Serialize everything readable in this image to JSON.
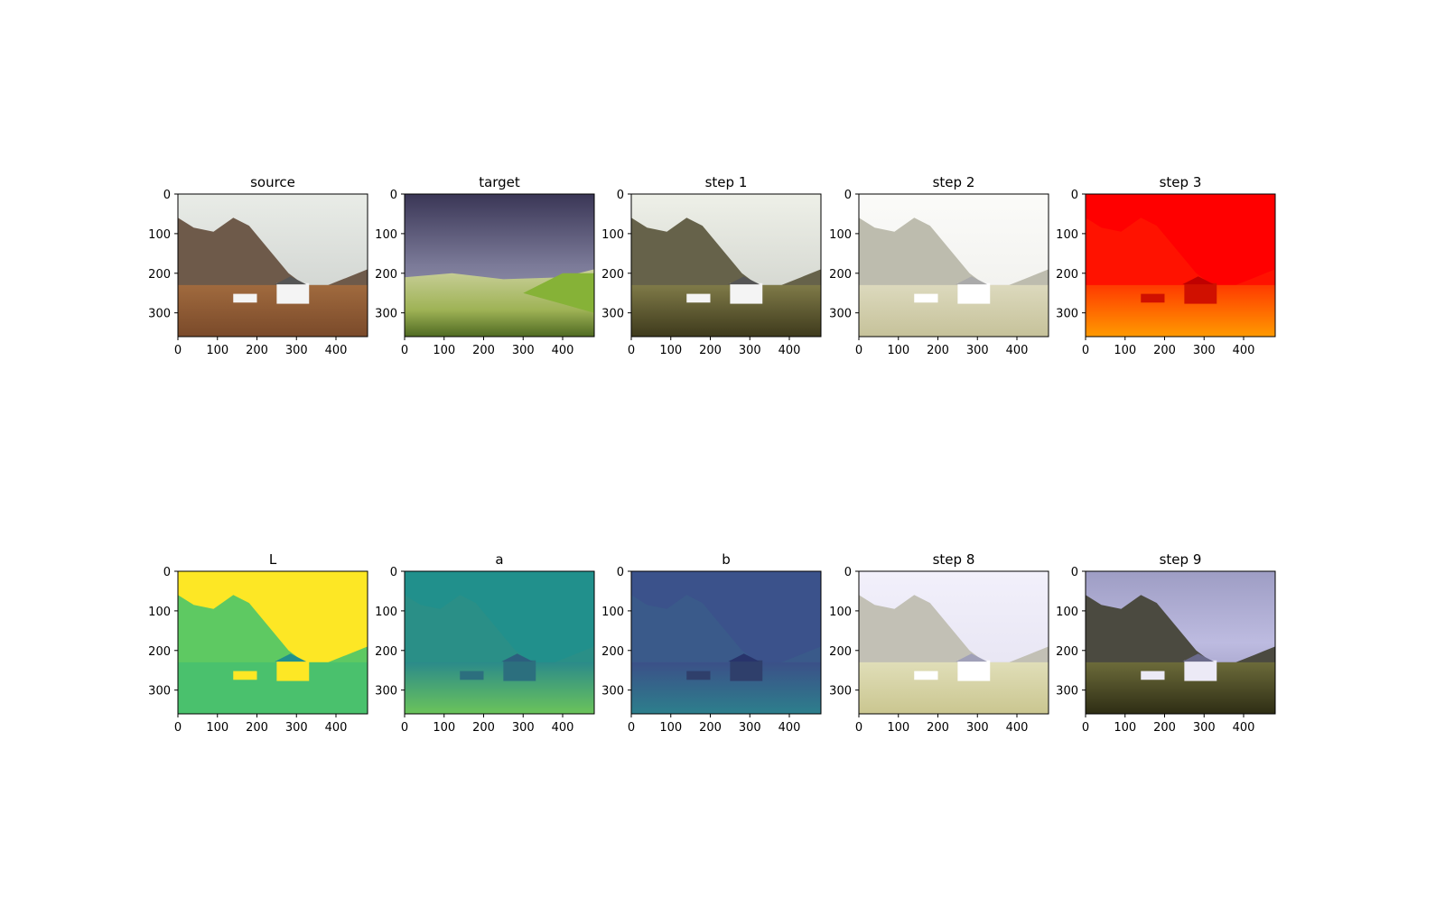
{
  "figure": {
    "panels": [
      {
        "title": "source",
        "theme": "source-photo"
      },
      {
        "title": "target",
        "theme": "target-photo"
      },
      {
        "title": "step 1",
        "theme": "step1-photo"
      },
      {
        "title": "step 2",
        "theme": "step2-photo"
      },
      {
        "title": "step 3",
        "theme": "step3-red"
      },
      {
        "title": "L",
        "theme": "L-channel"
      },
      {
        "title": "a",
        "theme": "a-channel"
      },
      {
        "title": "b",
        "theme": "b-channel"
      },
      {
        "title": "step 8",
        "theme": "step8-photo"
      },
      {
        "title": "step 9",
        "theme": "step9-photo"
      }
    ],
    "x_ticks": [
      "0",
      "100",
      "200",
      "300",
      "400"
    ],
    "y_ticks": [
      "0",
      "100",
      "200",
      "300"
    ],
    "image_extent": {
      "width": 480,
      "height": 360
    }
  }
}
